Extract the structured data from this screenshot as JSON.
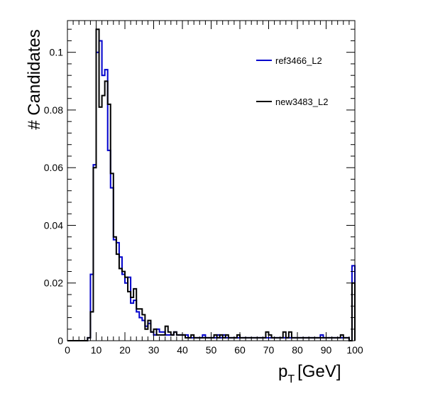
{
  "chart_data": {
    "type": "line",
    "style": "step-histogram",
    "xlabel": "p",
    "xlabel_subscript": "T",
    "xlabel_unit": "[GeV]",
    "ylabel": "# Candidates",
    "xlim": [
      0,
      100
    ],
    "ylim": [
      0,
      0.111
    ],
    "bin_width": 1,
    "x_ticks": [
      0,
      10,
      20,
      30,
      40,
      50,
      60,
      70,
      80,
      90,
      100
    ],
    "x_tick_labels": [
      "0",
      "10",
      "20",
      "30",
      "40",
      "50",
      "60",
      "70",
      "80",
      "90",
      "100"
    ],
    "y_ticks": [
      0,
      0.02,
      0.04,
      0.06,
      0.08,
      0.1
    ],
    "y_tick_labels": [
      "0",
      "0.02",
      "0.04",
      "0.06",
      "0.08",
      "0.1"
    ],
    "grid": false,
    "legend_position": "top-right",
    "series": [
      {
        "name": "ref3466_L2",
        "color": "#0000cc",
        "values": [
          0,
          0,
          0,
          0,
          0,
          0,
          0,
          0.001,
          0.023,
          0.061,
          0.1,
          0.104,
          0.092,
          0.094,
          0.066,
          0.053,
          0.035,
          0.034,
          0.029,
          0.023,
          0.02,
          0.022,
          0.013,
          0.014,
          0.01,
          0.008,
          0.007,
          0.005,
          0.006,
          0.003,
          0.002,
          0.004,
          0.003,
          0.003,
          0.002,
          0.002,
          0.002,
          0.003,
          0.002,
          0.002,
          0.002,
          0.002,
          0.001,
          0.001,
          0.001,
          0.001,
          0.001,
          0.002,
          0.001,
          0.001,
          0.001,
          0.001,
          0.002,
          0.001,
          0.002,
          0.001,
          0.001,
          0.001,
          0.001,
          0.001,
          0.001,
          0.001,
          0.001,
          0.001,
          0.001,
          0.001,
          0.001,
          0.001,
          0.001,
          0.001,
          0.001,
          0.001,
          0.001,
          0.001,
          0.001,
          0.001,
          0.001,
          0.001,
          0.001,
          0.001,
          0.001,
          0.001,
          0.001,
          0.001,
          0.001,
          0.001,
          0.001,
          0.001,
          0.002,
          0.001,
          0.001,
          0.001,
          0.001,
          0.001,
          0.001,
          0.001,
          0.001,
          0.001,
          0,
          0.026
        ]
      },
      {
        "name": "new3483_L2",
        "color": "#000000",
        "values": [
          0,
          0,
          0,
          0,
          0,
          0,
          0,
          0.001,
          0.01,
          0.06,
          0.108,
          0.081,
          0.085,
          0.09,
          0.082,
          0.058,
          0.036,
          0.03,
          0.025,
          0.024,
          0.022,
          0.017,
          0.015,
          0.018,
          0.011,
          0.011,
          0.009,
          0.004,
          0.007,
          0.003,
          0.004,
          0.002,
          0.002,
          0.002,
          0.005,
          0.003,
          0.002,
          0.003,
          0.002,
          0.002,
          0.002,
          0.001,
          0.001,
          0.002,
          0.001,
          0.001,
          0.001,
          0.001,
          0.001,
          0.001,
          0.001,
          0.002,
          0.001,
          0.002,
          0.001,
          0.002,
          0.001,
          0.001,
          0.001,
          0.002,
          0.001,
          0.001,
          0.001,
          0.001,
          0.001,
          0.001,
          0.001,
          0.001,
          0.001,
          0.003,
          0.002,
          0.001,
          0.001,
          0.001,
          0.001,
          0.003,
          0.001,
          0.003,
          0.001,
          0.001,
          0.001,
          0.001,
          0.001,
          0.001,
          0.001,
          0.001,
          0.001,
          0.001,
          0.001,
          0.001,
          0.001,
          0.001,
          0.001,
          0.001,
          0.001,
          0.002,
          0.001,
          0.001,
          0,
          0.02
        ]
      }
    ]
  }
}
